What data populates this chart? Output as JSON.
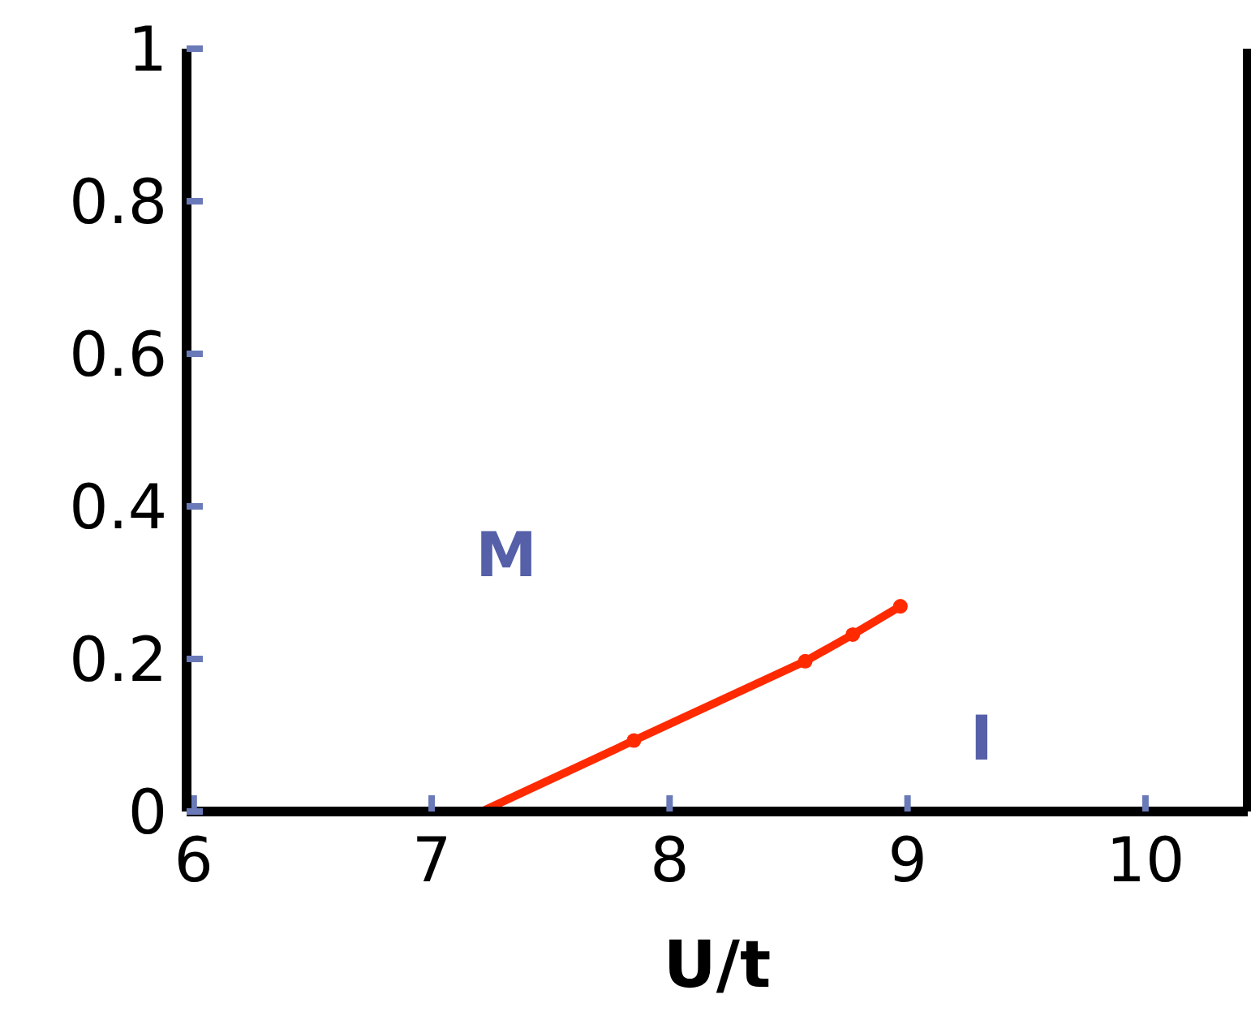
{
  "chart_data": {
    "type": "line",
    "xlabel": "U/t",
    "xlim": [
      5.97,
      10.43
    ],
    "xticks": [
      6,
      7,
      8,
      9,
      10
    ],
    "ylim": [
      0,
      1
    ],
    "yticks": [
      0,
      0.2,
      0.4,
      0.6,
      0.8,
      1
    ],
    "series": [
      {
        "color": "#ff2a00",
        "marker": "none",
        "x": [
          7.21,
          7.85,
          8.57,
          8.77,
          8.97
        ],
        "values": [
          0,
          0.093,
          0.197,
          0.232,
          0.269
        ]
      },
      {
        "type": "scatter",
        "color": "#ff2a00",
        "marker": "circle",
        "x": [
          7.85,
          8.57,
          8.77,
          8.97
        ],
        "values": [
          0.093,
          0.197,
          0.232,
          0.269
        ]
      }
    ],
    "annotations": [
      "M",
      "I"
    ]
  }
}
